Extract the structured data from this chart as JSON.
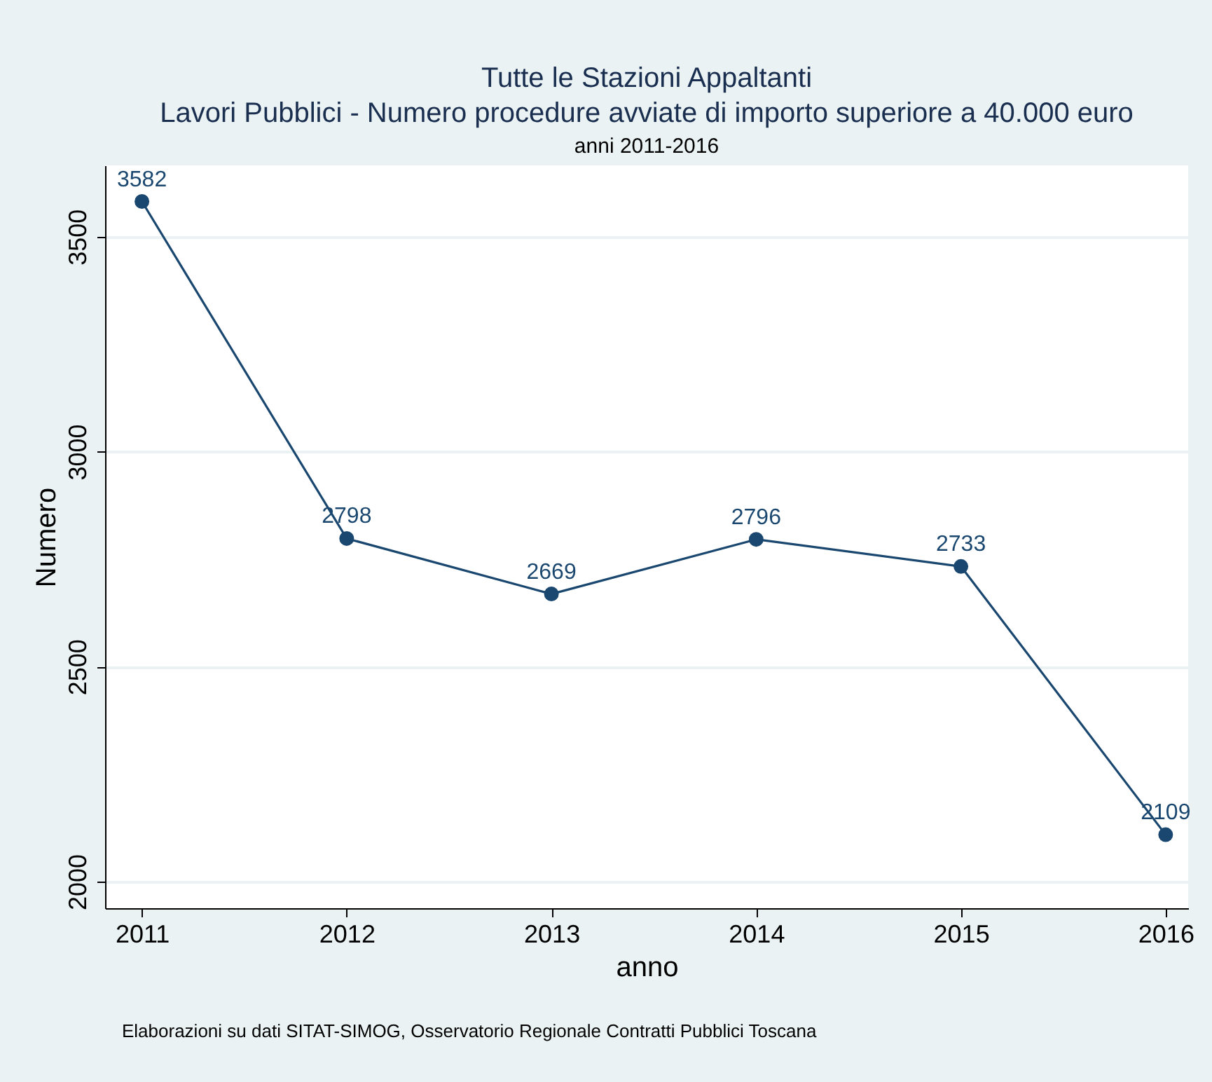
{
  "chart_data": {
    "type": "line",
    "title": [
      "Tutte le Stazioni Appaltanti",
      "Lavori Pubblici - Numero procedure avviate di importo superiore a 40.000 euro"
    ],
    "subtitle": "anni 2011-2016",
    "xlabel": "anno",
    "ylabel": "Numero",
    "x": [
      2011,
      2012,
      2013,
      2014,
      2015,
      2016
    ],
    "series": [
      {
        "color": "#1a476f",
        "values": [
          3582,
          2798,
          2669,
          2796,
          2733,
          2109
        ]
      }
    ],
    "xlim": [
      2010.82,
      2016.11
    ],
    "xticks": [
      2011,
      2012,
      2013,
      2014,
      2015,
      2016
    ],
    "ylim": [
      1938,
      3666
    ],
    "yticks": [
      2000,
      2500,
      3000,
      3500
    ],
    "grid": "y",
    "marker": "circle",
    "line_style": "solid",
    "data_labels": true,
    "annotations": [
      "Elaborazioni su dati SITAT-SIMOG, Osservatorio Regionale Contratti Pubblici Toscana"
    ]
  }
}
